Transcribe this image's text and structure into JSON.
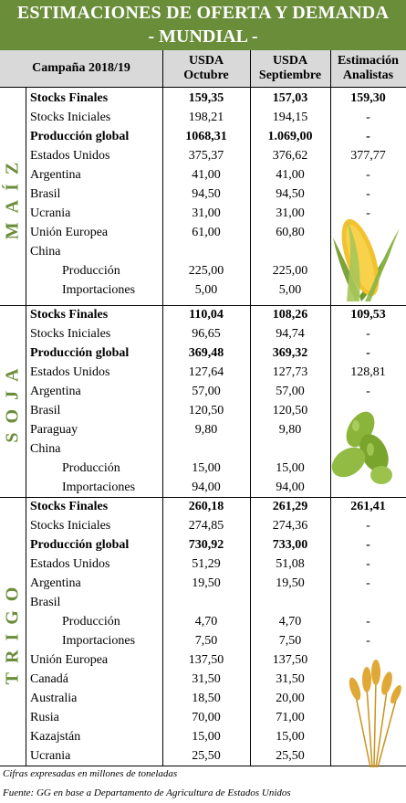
{
  "header": {
    "title_line1": "ESTIMACIONES DE OFERTA Y DEMANDA",
    "title_line2": "- MUNDIAL -"
  },
  "columns": {
    "campaign": "Campaña 2018/19",
    "col1_line1": "USDA",
    "col1_line2": "Octubre",
    "col2_line1": "USDA",
    "col2_line2": "Septiembre",
    "col3_line1": "Estimación",
    "col3_line2": "Analistas"
  },
  "sections": [
    {
      "name": "MAÍZ",
      "rows": [
        {
          "label": "Stocks Finales",
          "v1": "159,35",
          "v2": "157,03",
          "v3": "159,30",
          "bold": true,
          "indent": false
        },
        {
          "label": "Stocks Iniciales",
          "v1": "198,21",
          "v2": "194,15",
          "v3": "-",
          "bold": false,
          "indent": false
        },
        {
          "label": "Producción global",
          "v1": "1068,31",
          "v2": "1.069,00",
          "v3": "-",
          "bold": true,
          "indent": false
        },
        {
          "label": "Estados Unidos",
          "v1": "375,37",
          "v2": "376,62",
          "v3": "377,77",
          "bold": false,
          "indent": false
        },
        {
          "label": "Argentina",
          "v1": "41,00",
          "v2": "41,00",
          "v3": "-",
          "bold": false,
          "indent": false
        },
        {
          "label": "Brasil",
          "v1": "94,50",
          "v2": "94,50",
          "v3": "-",
          "bold": false,
          "indent": false
        },
        {
          "label": "Ucrania",
          "v1": "31,00",
          "v2": "31,00",
          "v3": "-",
          "bold": false,
          "indent": false
        },
        {
          "label": "Unión Europea",
          "v1": "61,00",
          "v2": "60,80",
          "v3": "",
          "bold": false,
          "indent": false
        },
        {
          "label": "China",
          "v1": "",
          "v2": "",
          "v3": "",
          "bold": false,
          "indent": false
        },
        {
          "label": "Producción",
          "v1": "225,00",
          "v2": "225,00",
          "v3": "",
          "bold": false,
          "indent": true
        },
        {
          "label": "Importaciones",
          "v1": "5,00",
          "v2": "5,00",
          "v3": "",
          "bold": false,
          "indent": true
        }
      ]
    },
    {
      "name": "SOJA",
      "rows": [
        {
          "label": "Stocks Finales",
          "v1": "110,04",
          "v2": "108,26",
          "v3": "109,53",
          "bold": true,
          "indent": false
        },
        {
          "label": "Stocks Iniciales",
          "v1": "96,65",
          "v2": "94,74",
          "v3": "-",
          "bold": false,
          "indent": false
        },
        {
          "label": "Producción global",
          "v1": "369,48",
          "v2": "369,32",
          "v3": "-",
          "bold": true,
          "indent": false
        },
        {
          "label": "Estados Unidos",
          "v1": "127,64",
          "v2": "127,73",
          "v3": "128,81",
          "bold": false,
          "indent": false
        },
        {
          "label": "Argentina",
          "v1": "57,00",
          "v2": "57,00",
          "v3": "-",
          "bold": false,
          "indent": false
        },
        {
          "label": "Brasil",
          "v1": "120,50",
          "v2": "120,50",
          "v3": "",
          "bold": false,
          "indent": false
        },
        {
          "label": "Paraguay",
          "v1": "9,80",
          "v2": "9,80",
          "v3": "",
          "bold": false,
          "indent": false
        },
        {
          "label": "China",
          "v1": "",
          "v2": "",
          "v3": "",
          "bold": false,
          "indent": false
        },
        {
          "label": "Producción",
          "v1": "15,00",
          "v2": "15,00",
          "v3": "",
          "bold": false,
          "indent": true
        },
        {
          "label": "Importaciones",
          "v1": "94,00",
          "v2": "94,00",
          "v3": "",
          "bold": false,
          "indent": true
        }
      ]
    },
    {
      "name": "TRIGO",
      "rows": [
        {
          "label": "Stocks Finales",
          "v1": "260,18",
          "v2": "261,29",
          "v3": "261,41",
          "bold": true,
          "indent": false
        },
        {
          "label": "Stocks Iniciales",
          "v1": "274,85",
          "v2": "274,36",
          "v3": "-",
          "bold": false,
          "indent": false
        },
        {
          "label": "Producción global",
          "v1": "730,92",
          "v2": "733,00",
          "v3": "-",
          "bold": true,
          "indent": false
        },
        {
          "label": "Estados Unidos",
          "v1": "51,29",
          "v2": "51,08",
          "v3": "-",
          "bold": false,
          "indent": false
        },
        {
          "label": "Argentina",
          "v1": "19,50",
          "v2": "19,50",
          "v3": "-",
          "bold": false,
          "indent": false
        },
        {
          "label": "Brasil",
          "v1": "",
          "v2": "",
          "v3": "",
          "bold": false,
          "indent": false
        },
        {
          "label": "Producción",
          "v1": "4,70",
          "v2": "4,70",
          "v3": "-",
          "bold": false,
          "indent": true
        },
        {
          "label": "Importaciones",
          "v1": "7,50",
          "v2": "7,50",
          "v3": "-",
          "bold": false,
          "indent": true
        },
        {
          "label": "Unión Europea",
          "v1": "137,50",
          "v2": "137,50",
          "v3": "",
          "bold": false,
          "indent": false
        },
        {
          "label": "Canadá",
          "v1": "31,50",
          "v2": "31,50",
          "v3": "",
          "bold": false,
          "indent": false
        },
        {
          "label": "Australia",
          "v1": "18,50",
          "v2": "20,00",
          "v3": "",
          "bold": false,
          "indent": false
        },
        {
          "label": "Rusia",
          "v1": "70,00",
          "v2": "71,00",
          "v3": "",
          "bold": false,
          "indent": false
        },
        {
          "label": "Kazajstán",
          "v1": "15,00",
          "v2": "15,00",
          "v3": "",
          "bold": false,
          "indent": false
        },
        {
          "label": "Ucrania",
          "v1": "25,50",
          "v2": "25,50",
          "v3": "",
          "bold": false,
          "indent": false
        }
      ]
    }
  ],
  "footer": {
    "note": "Cifras expresadas en millones de toneladas",
    "source": "Fuente: GG en base a Departamento de Agricultura de Estados Unidos"
  },
  "colors": {
    "accent": "#6a8d3a",
    "header_gray": "#d9d9d9"
  },
  "icons": [
    "corn-icon",
    "soybean-icon",
    "wheat-icon"
  ]
}
